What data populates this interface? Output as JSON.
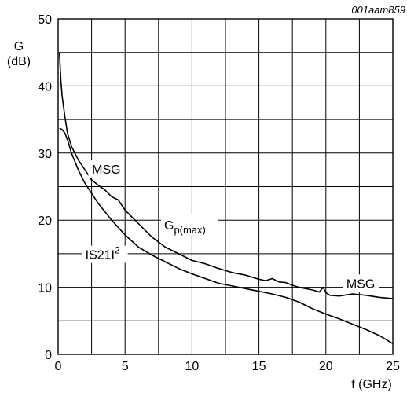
{
  "figure_code": "001aam859",
  "chart_data": {
    "type": "line",
    "title": "",
    "xlabel": "f (GHz)",
    "ylabel": {
      "symbol": "G",
      "unit": "(dB)"
    },
    "xlim": [
      0,
      25
    ],
    "ylim": [
      0,
      50
    ],
    "xticks": [
      "0",
      "5",
      "10",
      "15",
      "20",
      "25"
    ],
    "yticks": [
      "0",
      "10",
      "20",
      "30",
      "40",
      "50"
    ],
    "grid": true,
    "series": [
      {
        "name": "MSG",
        "x": [
          0.1,
          0.2,
          0.3,
          0.5,
          0.7,
          1.0,
          1.5,
          2.0,
          2.5,
          3.0,
          3.5,
          4.0,
          4.5,
          5.0,
          5.5,
          6.0,
          7.0,
          8.0,
          9.0,
          10.0,
          11.0,
          12.0,
          13.0,
          14.0,
          15.0,
          15.5,
          16.0,
          16.5,
          17.0,
          17.5,
          18.0,
          18.5,
          19.0,
          19.5,
          19.8,
          20.0,
          20.3,
          21.0,
          22.0,
          23.0,
          24.0,
          25.0
        ],
        "y": [
          45.0,
          41.0,
          38.5,
          35.5,
          33.0,
          31.0,
          29.0,
          27.5,
          26.0,
          25.2,
          24.5,
          23.5,
          23.0,
          21.5,
          20.5,
          19.5,
          17.5,
          16.0,
          15.0,
          14.0,
          13.5,
          12.8,
          12.2,
          11.8,
          11.2,
          11.0,
          11.3,
          10.8,
          10.7,
          10.3,
          10.0,
          9.8,
          9.6,
          9.3,
          10.0,
          9.2,
          8.8,
          8.7,
          9.0,
          8.8,
          8.5,
          8.3
        ]
      },
      {
        "name": "IS21I²",
        "x": [
          0.1,
          0.3,
          0.5,
          0.7,
          1.0,
          1.5,
          2.0,
          2.5,
          3.0,
          4.0,
          5.0,
          6.0,
          7.0,
          8.0,
          9.0,
          10.0,
          11.0,
          12.0,
          13.0,
          14.0,
          15.0,
          16.0,
          17.0,
          18.0,
          19.0,
          20.0,
          21.0,
          22.0,
          23.0,
          24.0,
          25.0
        ],
        "y": [
          33.7,
          33.5,
          33.0,
          32.0,
          30.0,
          27.5,
          25.5,
          24.0,
          22.5,
          20.0,
          17.8,
          16.0,
          14.8,
          13.8,
          12.8,
          12.0,
          11.3,
          10.6,
          10.2,
          9.8,
          9.4,
          9.0,
          8.5,
          7.8,
          6.8,
          6.0,
          5.3,
          4.5,
          3.7,
          2.8,
          1.6
        ]
      }
    ],
    "annotations": [
      {
        "text": "MSG",
        "x": 3.6,
        "y": 27.5
      },
      {
        "text": "G",
        "sub": "p(max)",
        "x": 9.8,
        "y": 19.2
      },
      {
        "text": "IS21I",
        "sup": "2",
        "x": 3.5,
        "y": 14.8
      },
      {
        "text": "MSG",
        "x": 22.6,
        "y": 10.5
      }
    ]
  }
}
